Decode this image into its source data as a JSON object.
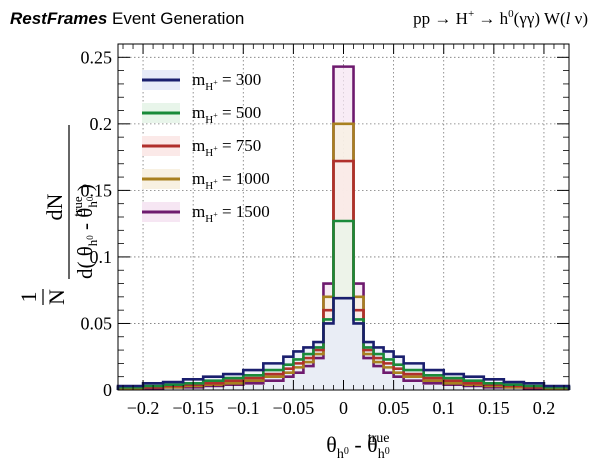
{
  "header": {
    "brand_bold": "RestFrames",
    "brand_rest": " Event Generation",
    "process": {
      "lhs": "pp → H",
      "lhs_sup": "+",
      "mid": " → h",
      "mid_sup": "0",
      "rhs": "(γγ) W(",
      "lep": "l",
      "nu": " ν)"
    }
  },
  "chart_data": {
    "type": "step-histogram",
    "xlabel": {
      "theta": "θ",
      "sub": "h",
      "subsup": "0",
      "minus": " - θ",
      "true_sup": "true"
    },
    "ylabel": {
      "frac1_num": "1",
      "frac1_den": "N",
      "frac2_num": "dN",
      "frac2_den": "d( θ",
      "frac2_den_mid": " - θ",
      "frac2_den_end": " )",
      "sub": "h",
      "subsup": "0",
      "true_sup": "true"
    },
    "xlim": [
      -0.225,
      0.225
    ],
    "ylim": [
      0,
      0.26
    ],
    "grid": true,
    "legend_position": "top-left",
    "xticks": [
      -0.2,
      -0.15,
      -0.1,
      -0.05,
      0,
      0.05,
      0.1,
      0.15,
      0.2
    ],
    "xtick_labels": [
      "−0.2",
      "−0.15",
      "−0.1",
      "−0.05",
      "0",
      "0.05",
      "0.1",
      "0.15",
      "0.2"
    ],
    "yticks": [
      0,
      0.05,
      0.1,
      0.15,
      0.2,
      0.25
    ],
    "ytick_labels": [
      "0",
      "0.05",
      "0.1",
      "0.15",
      "0.2",
      "0.25"
    ],
    "bin_edges": [
      -0.225,
      -0.2,
      -0.18,
      -0.16,
      -0.14,
      -0.12,
      -0.1,
      -0.08,
      -0.06,
      -0.05,
      -0.04,
      -0.03,
      -0.02,
      -0.01,
      0,
      0.01,
      0.02,
      0.03,
      0.04,
      0.05,
      0.06,
      0.08,
      0.1,
      0.12,
      0.14,
      0.16,
      0.18,
      0.2,
      0.225
    ],
    "series": [
      {
        "name": "m",
        "mass_label": " = 300",
        "color": "#1a1f6e",
        "fill": "#e7ebf8",
        "values": [
          0.003,
          0.005,
          0.006,
          0.008,
          0.01,
          0.012,
          0.015,
          0.02,
          0.025,
          0.029,
          0.032,
          0.036,
          0.05,
          0.069,
          0.069,
          0.05,
          0.036,
          0.032,
          0.029,
          0.025,
          0.02,
          0.015,
          0.012,
          0.01,
          0.008,
          0.006,
          0.005,
          0.003
        ]
      },
      {
        "name": "m",
        "mass_label": " = 500",
        "color": "#1a8a3a",
        "fill": "#e8f5ea",
        "values": [
          0.002,
          0.003,
          0.004,
          0.005,
          0.007,
          0.009,
          0.011,
          0.015,
          0.019,
          0.023,
          0.027,
          0.032,
          0.053,
          0.127,
          0.127,
          0.053,
          0.032,
          0.027,
          0.023,
          0.019,
          0.015,
          0.011,
          0.009,
          0.007,
          0.005,
          0.004,
          0.003,
          0.002
        ]
      },
      {
        "name": "m",
        "mass_label": " = 750",
        "color": "#b0302c",
        "fill": "#fbe9e8",
        "values": [
          0.002,
          0.002,
          0.003,
          0.004,
          0.005,
          0.007,
          0.009,
          0.012,
          0.016,
          0.02,
          0.024,
          0.03,
          0.06,
          0.172,
          0.172,
          0.06,
          0.03,
          0.024,
          0.02,
          0.016,
          0.012,
          0.009,
          0.007,
          0.005,
          0.004,
          0.003,
          0.002,
          0.002
        ]
      },
      {
        "name": "m",
        "mass_label": " = 1000",
        "color": "#a8801f",
        "fill": "#f8f1e2",
        "values": [
          0.001,
          0.002,
          0.002,
          0.003,
          0.004,
          0.005,
          0.007,
          0.01,
          0.013,
          0.017,
          0.021,
          0.027,
          0.07,
          0.2,
          0.2,
          0.07,
          0.027,
          0.021,
          0.017,
          0.013,
          0.01,
          0.007,
          0.005,
          0.004,
          0.003,
          0.002,
          0.002,
          0.001
        ]
      },
      {
        "name": "m",
        "mass_label": " = 1500",
        "color": "#6e1a6e",
        "fill": "#f6e6f3",
        "values": [
          0.001,
          0.001,
          0.002,
          0.002,
          0.003,
          0.004,
          0.005,
          0.007,
          0.01,
          0.013,
          0.018,
          0.024,
          0.08,
          0.243,
          0.243,
          0.08,
          0.024,
          0.018,
          0.013,
          0.01,
          0.007,
          0.005,
          0.004,
          0.003,
          0.002,
          0.002,
          0.001,
          0.001
        ]
      }
    ],
    "legend_sub": "H",
    "legend_subsup": "+"
  }
}
